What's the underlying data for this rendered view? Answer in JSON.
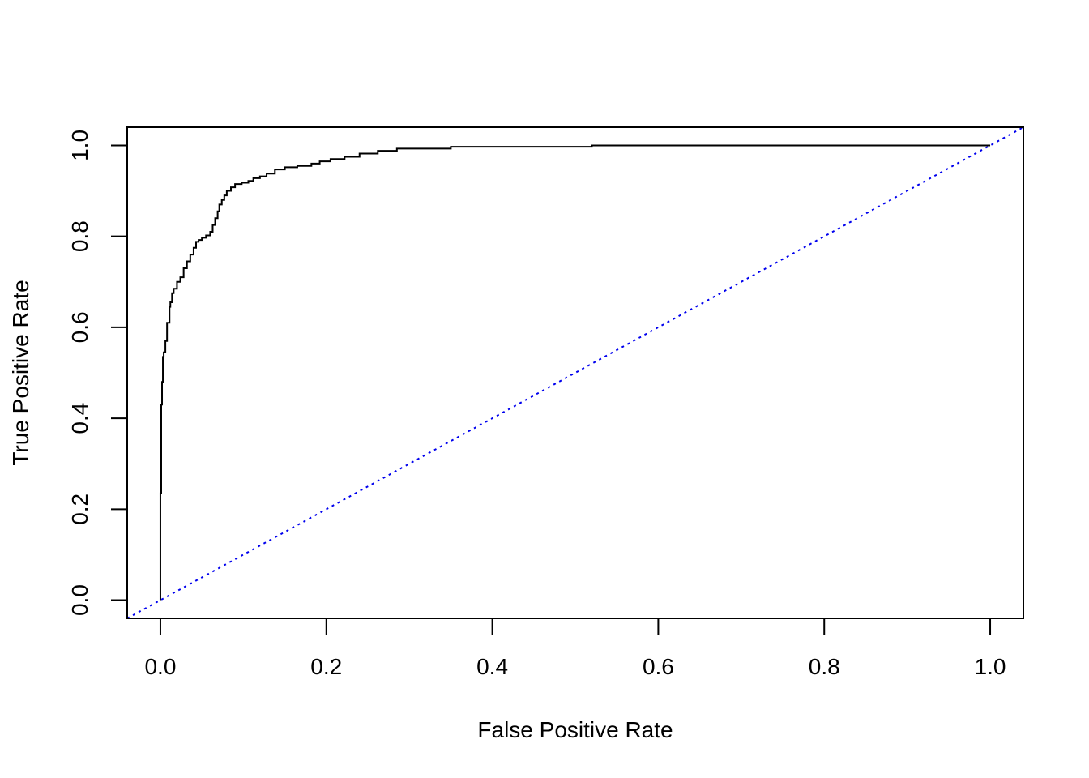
{
  "chart_data": {
    "type": "line",
    "title": "",
    "xlabel": "False Positive Rate",
    "ylabel": "True Positive Rate",
    "xlim": [
      -0.04,
      1.04
    ],
    "ylim": [
      -0.04,
      1.04
    ],
    "xticks": [
      0.0,
      0.2,
      0.4,
      0.6,
      0.8,
      1.0
    ],
    "xtick_labels": [
      "0.0",
      "0.2",
      "0.4",
      "0.6",
      "0.8",
      "1.0"
    ],
    "yticks": [
      0.0,
      0.2,
      0.4,
      0.6,
      0.8,
      1.0
    ],
    "ytick_labels": [
      "0.0",
      "0.2",
      "0.4",
      "0.6",
      "0.8",
      "1.0"
    ],
    "grid": false,
    "series": [
      {
        "style": "solid",
        "color": "#000000",
        "x": [
          0.0,
          0.0,
          0.001,
          0.001,
          0.002,
          0.002,
          0.003,
          0.003,
          0.004,
          0.004,
          0.006,
          0.006,
          0.008,
          0.008,
          0.011,
          0.011,
          0.012,
          0.012,
          0.014,
          0.014,
          0.016,
          0.016,
          0.02,
          0.02,
          0.024,
          0.024,
          0.028,
          0.028,
          0.032,
          0.032,
          0.036,
          0.036,
          0.04,
          0.04,
          0.043,
          0.043,
          0.046,
          0.046,
          0.05,
          0.05,
          0.055,
          0.055,
          0.06,
          0.06,
          0.063,
          0.063,
          0.066,
          0.066,
          0.069,
          0.069,
          0.071,
          0.071,
          0.074,
          0.074,
          0.077,
          0.077,
          0.08,
          0.08,
          0.085,
          0.085,
          0.09,
          0.09,
          0.098,
          0.098,
          0.106,
          0.106,
          0.112,
          0.112,
          0.12,
          0.12,
          0.128,
          0.128,
          0.138,
          0.138,
          0.15,
          0.15,
          0.165,
          0.165,
          0.182,
          0.182,
          0.192,
          0.192,
          0.205,
          0.205,
          0.222,
          0.222,
          0.24,
          0.24,
          0.262,
          0.262,
          0.285,
          0.285,
          0.35,
          0.35,
          0.52,
          0.52,
          1.0
        ],
        "y": [
          0.0,
          0.235,
          0.235,
          0.43,
          0.43,
          0.48,
          0.48,
          0.535,
          0.535,
          0.545,
          0.545,
          0.57,
          0.57,
          0.61,
          0.61,
          0.645,
          0.645,
          0.655,
          0.655,
          0.675,
          0.675,
          0.685,
          0.685,
          0.7,
          0.7,
          0.71,
          0.71,
          0.73,
          0.73,
          0.745,
          0.745,
          0.76,
          0.76,
          0.775,
          0.775,
          0.788,
          0.788,
          0.792,
          0.792,
          0.797,
          0.797,
          0.802,
          0.802,
          0.81,
          0.81,
          0.825,
          0.825,
          0.84,
          0.84,
          0.855,
          0.855,
          0.87,
          0.87,
          0.88,
          0.88,
          0.89,
          0.89,
          0.9,
          0.9,
          0.908,
          0.908,
          0.915,
          0.915,
          0.918,
          0.918,
          0.922,
          0.922,
          0.928,
          0.928,
          0.932,
          0.932,
          0.938,
          0.938,
          0.947,
          0.947,
          0.952,
          0.952,
          0.955,
          0.955,
          0.96,
          0.96,
          0.965,
          0.965,
          0.97,
          0.97,
          0.975,
          0.975,
          0.982,
          0.982,
          0.988,
          0.988,
          0.993,
          0.993,
          0.997,
          0.997,
          1.0,
          1.0
        ]
      },
      {
        "style": "dotted",
        "color": "#0000ee",
        "x": [
          -0.04,
          1.04
        ],
        "y": [
          -0.04,
          1.04
        ]
      }
    ]
  }
}
